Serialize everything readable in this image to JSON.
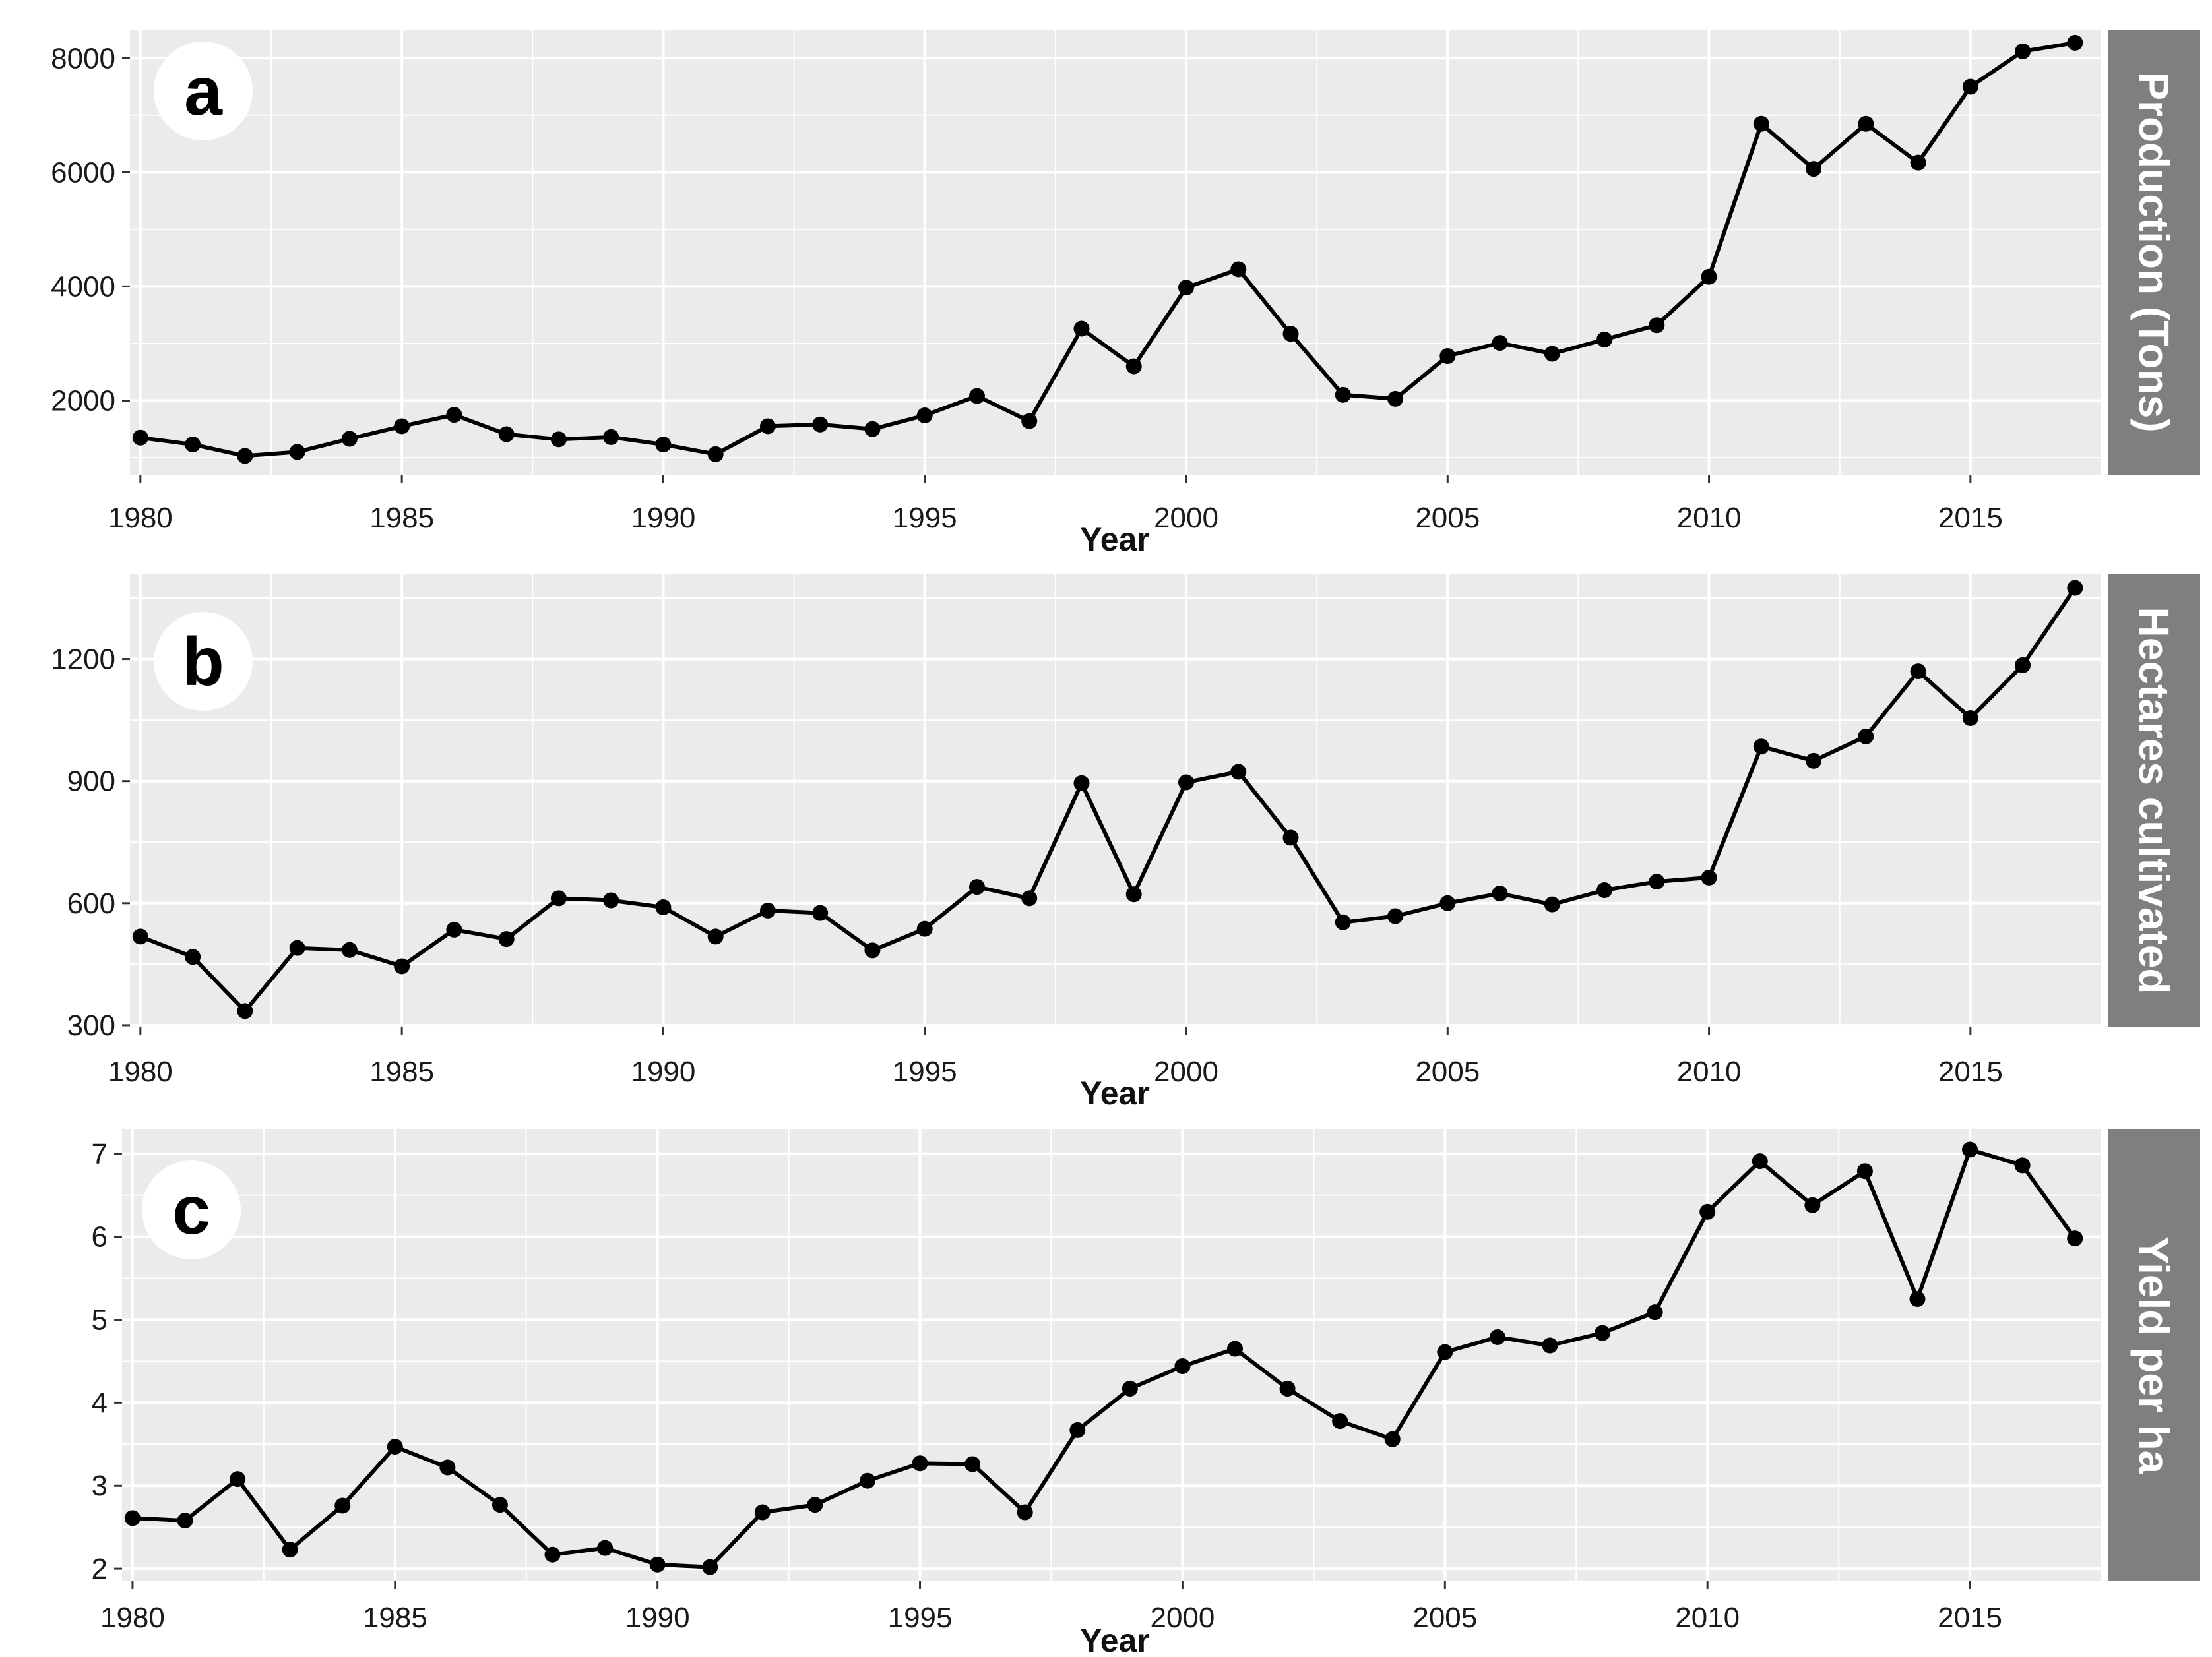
{
  "style": {
    "panel_background": "#EBEBEB",
    "grid_color": "#FFFFFF",
    "strip_background": "#7F7F7F",
    "strip_text_color": "#FFFFFF",
    "line_color": "#000000",
    "tick_color": "#333333"
  },
  "chart_data": [
    {
      "type": "line",
      "panel_label": "a",
      "xlabel": "Year",
      "ylabel": "Production (Tons)",
      "xlim": [
        1979.8,
        2017.5
      ],
      "ylim": [
        700,
        8500
      ],
      "x_ticks": [
        1980,
        1985,
        1990,
        1995,
        2000,
        2005,
        2010,
        2015
      ],
      "y_ticks": [
        2000,
        4000,
        6000,
        8000
      ],
      "grid": true,
      "x": [
        1980,
        1981,
        1982,
        1983,
        1984,
        1985,
        1986,
        1987,
        1988,
        1989,
        1990,
        1991,
        1992,
        1993,
        1994,
        1995,
        1996,
        1997,
        1998,
        1999,
        2000,
        2001,
        2002,
        2003,
        2004,
        2005,
        2006,
        2007,
        2008,
        2009,
        2010,
        2011,
        2012,
        2013,
        2014,
        2015,
        2016,
        2017
      ],
      "values": [
        1350,
        1230,
        1030,
        1100,
        1330,
        1550,
        1750,
        1410,
        1320,
        1360,
        1230,
        1060,
        1550,
        1580,
        1500,
        1740,
        2080,
        1640,
        3260,
        2600,
        3980,
        4300,
        3170,
        2100,
        2030,
        2780,
        3010,
        2820,
        3070,
        3320,
        4170,
        6850,
        6060,
        6850,
        6170,
        7500,
        8120,
        8270
      ]
    },
    {
      "type": "line",
      "panel_label": "b",
      "xlabel": "Year",
      "ylabel": "Hectares cultivated",
      "xlim": [
        1979.8,
        2017.5
      ],
      "ylim": [
        295,
        1410
      ],
      "x_ticks": [
        1980,
        1985,
        1990,
        1995,
        2000,
        2005,
        2010,
        2015
      ],
      "y_ticks": [
        300,
        600,
        900,
        1200
      ],
      "grid": true,
      "x": [
        1980,
        1981,
        1982,
        1983,
        1984,
        1985,
        1986,
        1987,
        1988,
        1989,
        1990,
        1991,
        1992,
        1993,
        1994,
        1995,
        1996,
        1997,
        1998,
        1999,
        2000,
        2001,
        2002,
        2003,
        2004,
        2005,
        2006,
        2007,
        2008,
        2009,
        2010,
        2011,
        2012,
        2013,
        2014,
        2015,
        2016,
        2017
      ],
      "values": [
        518,
        468,
        335,
        490,
        485,
        445,
        535,
        512,
        612,
        607,
        590,
        518,
        582,
        576,
        484,
        537,
        640,
        612,
        895,
        622,
        897,
        923,
        761,
        553,
        568,
        600,
        624,
        597,
        632,
        653,
        663,
        985,
        950,
        1010,
        1170,
        1055,
        1185,
        1375
      ]
    },
    {
      "type": "line",
      "panel_label": "c",
      "xlabel": "Year",
      "ylabel": "Yield per ha",
      "xlim": [
        1979.8,
        2017.5
      ],
      "ylim": [
        1.85,
        7.3
      ],
      "x_ticks": [
        1980,
        1985,
        1990,
        1995,
        2000,
        2005,
        2010,
        2015
      ],
      "y_ticks": [
        2,
        3,
        4,
        5,
        6,
        7
      ],
      "grid": true,
      "x": [
        1980,
        1981,
        1982,
        1983,
        1984,
        1985,
        1986,
        1987,
        1988,
        1989,
        1990,
        1991,
        1992,
        1993,
        1994,
        1995,
        1996,
        1997,
        1998,
        1999,
        2000,
        2001,
        2002,
        2003,
        2004,
        2005,
        2006,
        2007,
        2008,
        2009,
        2010,
        2011,
        2012,
        2013,
        2014,
        2015,
        2016,
        2017
      ],
      "values": [
        2.61,
        2.58,
        3.08,
        2.23,
        2.76,
        3.47,
        3.22,
        2.77,
        2.17,
        2.25,
        2.05,
        2.02,
        2.68,
        2.77,
        3.06,
        3.27,
        3.26,
        2.68,
        3.67,
        4.17,
        4.44,
        4.65,
        4.17,
        3.78,
        3.56,
        4.61,
        4.79,
        4.69,
        4.84,
        5.09,
        6.3,
        6.91,
        6.38,
        6.79,
        5.25,
        7.05,
        6.86,
        5.98
      ]
    }
  ]
}
